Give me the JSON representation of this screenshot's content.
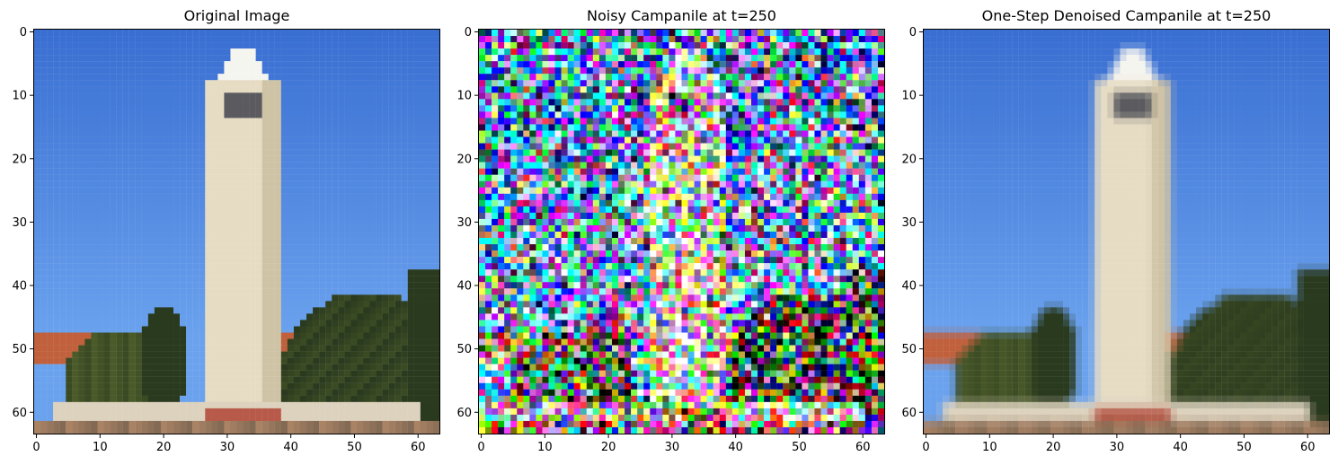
{
  "figure": {
    "panels": [
      {
        "id": "original",
        "title": "Original Image",
        "variant": "clean"
      },
      {
        "id": "noisy",
        "title": "Noisy Campanile at t=250",
        "variant": "noisy"
      },
      {
        "id": "denoised",
        "title": "One-Step Denoised Campanile at t=250",
        "variant": "blurred"
      }
    ],
    "x_ticks": [
      "0",
      "10",
      "20",
      "30",
      "40",
      "50",
      "60"
    ],
    "y_ticks": [
      "0",
      "10",
      "20",
      "30",
      "40",
      "50",
      "60"
    ],
    "image_size": 64
  },
  "colors": {
    "sky_top": "#3a6fd2",
    "sky_bottom": "#6aa2ee",
    "tower": "#e6dcc4",
    "tower_shadow": "#cfc3a6",
    "tree_dark": "#2a3a1e",
    "tree_mid": "#4a5a28",
    "roof": "#c0603c",
    "base": "#b85a4a"
  }
}
